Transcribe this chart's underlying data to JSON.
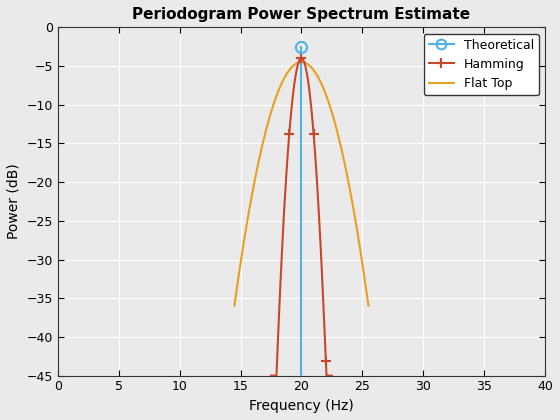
{
  "title": "Periodogram Power Spectrum Estimate",
  "xlabel": "Frequency (Hz)",
  "ylabel": "Power (dB)",
  "xlim": [
    0,
    40
  ],
  "ylim": [
    -45,
    0
  ],
  "xticks": [
    0,
    5,
    10,
    15,
    20,
    25,
    30,
    35,
    40
  ],
  "yticks": [
    0,
    -5,
    -10,
    -15,
    -20,
    -25,
    -30,
    -35,
    -40,
    -45
  ],
  "theoretical_x": 20.0,
  "theoretical_y": -2.5,
  "theoretical_color": "#4db3e6",
  "hamming_color": "#c8472b",
  "flattop_color": "#e8a020",
  "background_color": "#eaeaea",
  "axes_background": "#eaeaea",
  "grid_color": "#ffffff",
  "title_fontsize": 11,
  "label_fontsize": 10,
  "tick_fontsize": 9,
  "legend_fontsize": 9
}
